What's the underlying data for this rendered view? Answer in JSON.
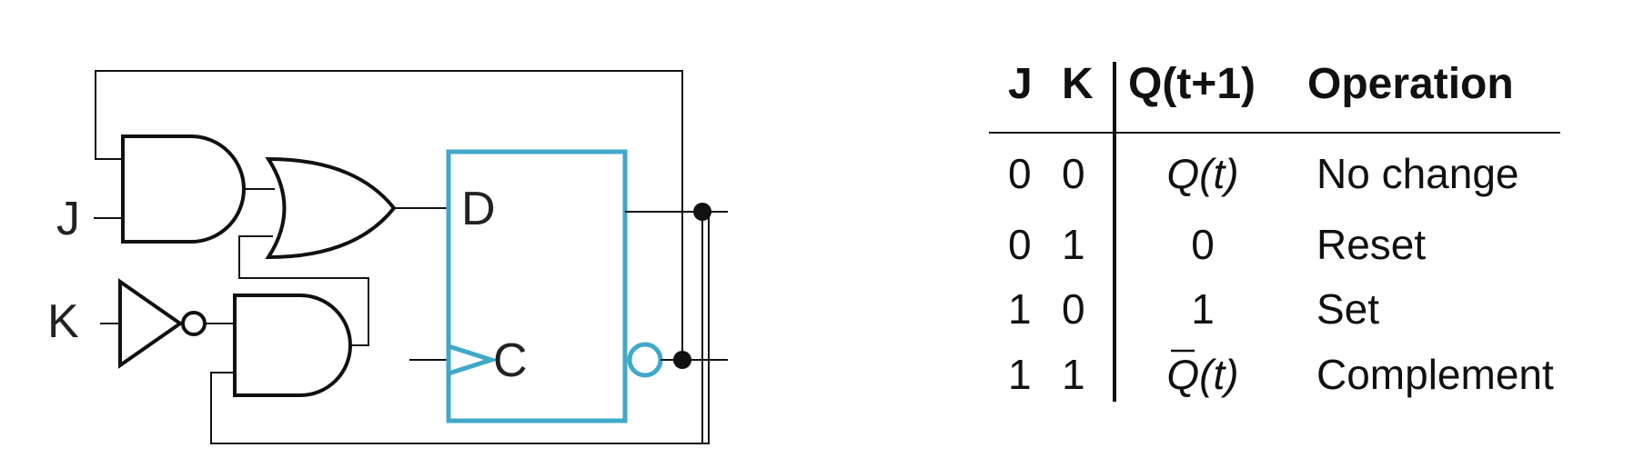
{
  "colors": {
    "flipflop": "#3fa9c9",
    "line": "#111111"
  },
  "circuit": {
    "input_j": "J",
    "input_k": "K",
    "ff_d": "D",
    "ff_c": "C"
  },
  "table": {
    "headers": {
      "j": "J",
      "k": "K",
      "next": "Q(t+1)",
      "op": "Operation"
    },
    "rows": [
      {
        "j": "0",
        "k": "0",
        "q": "Q",
        "t": "(t)",
        "bar": false,
        "op": "No change"
      },
      {
        "j": "0",
        "k": "1",
        "q": "0",
        "t": "",
        "bar": false,
        "op": "Reset"
      },
      {
        "j": "1",
        "k": "0",
        "q": "1",
        "t": "",
        "bar": false,
        "op": "Set"
      },
      {
        "j": "1",
        "k": "1",
        "q": "Q",
        "t": "(t)",
        "bar": true,
        "op": "Complement"
      }
    ]
  }
}
